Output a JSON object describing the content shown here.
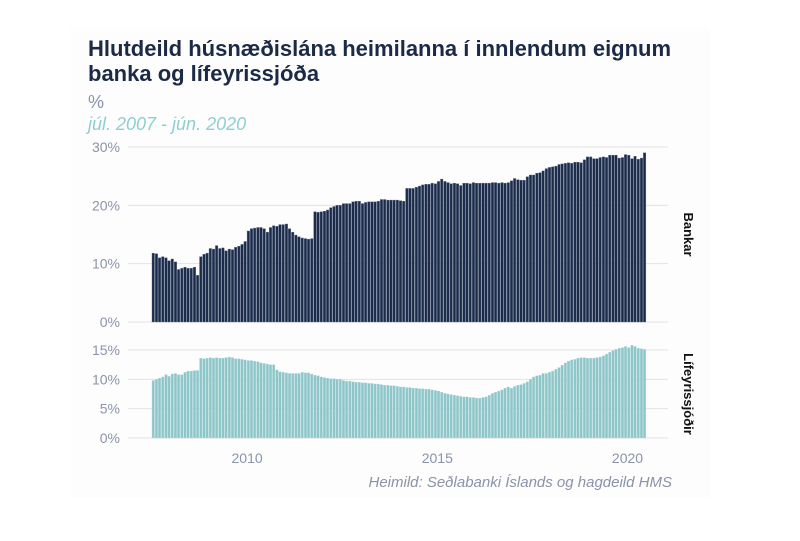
{
  "chart_data": {
    "type": "bar",
    "title": "Hlutdeild húsnæðislána heimilanna í innlendum eignum banka og lífeyrissjóða",
    "ylabel": "%",
    "subtitle": "júl. 2007 - jún. 2020",
    "source": "Heimild: Seðlabanki Íslands og hagdeild HMS",
    "start": "2007-07",
    "frequency": "monthly",
    "x_ticks": [
      "2010",
      "2015",
      "2020"
    ],
    "panels": [
      {
        "name": "Bankar",
        "color": "#1c2b4a",
        "ylim": [
          0,
          30
        ],
        "y_ticks": [
          "0%",
          "10%",
          "20%",
          "30%"
        ],
        "y_tick_values": [
          0,
          10,
          20,
          30
        ],
        "values": [
          11.8,
          11.7,
          11.0,
          11.2,
          11.0,
          10.5,
          10.8,
          10.3,
          9.0,
          9.2,
          9.4,
          9.2,
          9.2,
          9.4,
          8.0,
          11.2,
          11.6,
          11.8,
          12.6,
          12.5,
          13.1,
          12.6,
          12.7,
          12.2,
          12.5,
          12.4,
          12.8,
          13.0,
          13.3,
          13.8,
          15.6,
          16.0,
          16.1,
          16.2,
          16.2,
          16.0,
          15.4,
          16.2,
          16.5,
          16.4,
          16.7,
          16.7,
          16.8,
          16.0,
          15.4,
          14.9,
          14.6,
          14.4,
          14.3,
          14.2,
          14.3,
          18.9,
          18.8,
          18.9,
          19.0,
          19.2,
          19.6,
          19.8,
          20.0,
          20.0,
          20.3,
          20.3,
          20.3,
          20.6,
          20.7,
          20.7,
          20.3,
          20.5,
          20.6,
          20.6,
          20.6,
          20.7,
          21.0,
          21.0,
          20.9,
          20.9,
          20.9,
          20.9,
          20.8,
          20.7,
          22.9,
          22.9,
          22.9,
          23.1,
          23.3,
          23.5,
          23.6,
          23.6,
          23.8,
          23.7,
          24.1,
          24.5,
          24.1,
          23.9,
          23.7,
          23.8,
          23.7,
          23.4,
          23.8,
          23.8,
          23.7,
          23.9,
          23.8,
          23.8,
          23.8,
          23.8,
          23.8,
          23.9,
          23.9,
          23.8,
          23.9,
          23.8,
          23.9,
          24.2,
          24.6,
          24.4,
          24.3,
          24.3,
          24.9,
          25.2,
          25.2,
          25.5,
          25.6,
          25.9,
          26.3,
          26.5,
          26.6,
          26.7,
          27.0,
          27.1,
          27.2,
          27.3,
          27.2,
          27.4,
          27.4,
          27.3,
          27.8,
          28.3,
          28.3,
          28.0,
          28.0,
          28.2,
          28.3,
          28.2,
          28.6,
          28.6,
          28.6,
          28.1,
          28.2,
          28.7,
          28.6,
          28.0,
          28.4,
          27.9,
          28.1,
          29.0
        ]
      },
      {
        "name": "Lífeyrissjóðir",
        "color": "#8ec5c8",
        "ylim": [
          0,
          15
        ],
        "y_ticks": [
          "0%",
          "5%",
          "10%",
          "15%"
        ],
        "y_tick_values": [
          0,
          5,
          10,
          15
        ],
        "values": [
          9.8,
          10.0,
          10.2,
          10.4,
          10.8,
          10.5,
          10.9,
          11.0,
          10.8,
          10.8,
          11.2,
          11.4,
          11.4,
          11.5,
          11.5,
          13.6,
          13.5,
          13.6,
          13.7,
          13.6,
          13.7,
          13.6,
          13.6,
          13.7,
          13.8,
          13.7,
          13.5,
          13.5,
          13.4,
          13.3,
          13.2,
          13.2,
          13.1,
          13.0,
          12.8,
          12.7,
          12.6,
          12.5,
          12.5,
          11.6,
          11.3,
          11.2,
          11.1,
          11.0,
          11.0,
          11.0,
          11.0,
          11.2,
          11.1,
          11.1,
          10.9,
          10.7,
          10.6,
          10.4,
          10.3,
          10.2,
          10.1,
          10.1,
          10.0,
          10.0,
          9.8,
          9.7,
          9.7,
          9.6,
          9.5,
          9.5,
          9.4,
          9.4,
          9.3,
          9.3,
          9.2,
          9.2,
          9.1,
          9.0,
          9.0,
          8.9,
          8.9,
          8.8,
          8.7,
          8.7,
          8.6,
          8.6,
          8.5,
          8.5,
          8.4,
          8.4,
          8.3,
          8.3,
          8.2,
          8.1,
          8.0,
          7.8,
          7.6,
          7.5,
          7.4,
          7.3,
          7.2,
          7.1,
          7.0,
          7.0,
          6.9,
          6.9,
          6.8,
          6.8,
          6.9,
          7.0,
          7.3,
          7.6,
          7.8,
          8.0,
          8.2,
          8.5,
          8.7,
          8.5,
          8.8,
          9.0,
          9.1,
          9.3,
          9.6,
          10.0,
          10.4,
          10.6,
          10.7,
          11.0,
          11.0,
          11.2,
          11.4,
          11.7,
          12.0,
          12.4,
          12.8,
          13.1,
          13.3,
          13.4,
          13.6,
          13.7,
          13.7,
          13.6,
          13.6,
          13.6,
          13.7,
          13.8,
          14.0,
          14.3,
          14.6,
          14.9,
          15.1,
          15.3,
          15.4,
          15.6,
          15.4,
          15.8,
          15.6,
          15.3,
          15.2,
          15.1
        ]
      }
    ]
  }
}
